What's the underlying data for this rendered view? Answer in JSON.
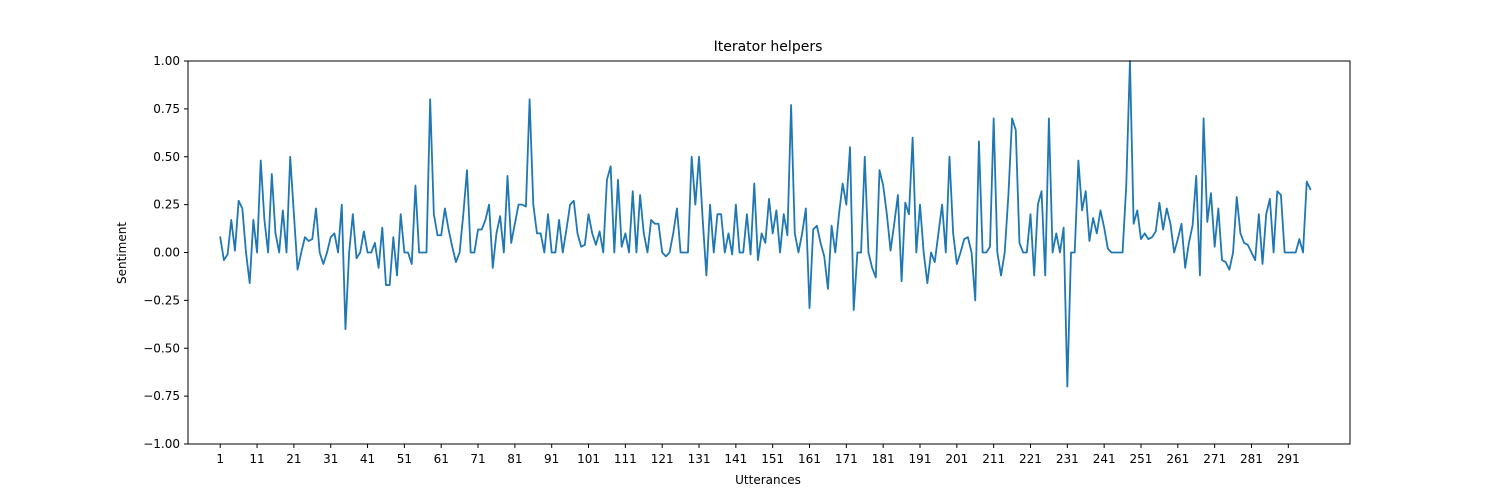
{
  "chart_data": {
    "type": "line",
    "title": "Iterator helpers",
    "xlabel": "Utterances",
    "ylabel": "Sentiment",
    "xlim": [
      -7.75,
      307.75
    ],
    "ylim": [
      -1.0,
      1.0
    ],
    "grid": false,
    "legend": "none",
    "line_color": "#1f77b4",
    "x_ticks": [
      1,
      11,
      21,
      31,
      41,
      51,
      61,
      71,
      81,
      91,
      101,
      111,
      121,
      131,
      141,
      151,
      161,
      171,
      181,
      191,
      201,
      211,
      221,
      231,
      241,
      251,
      261,
      271,
      281,
      291
    ],
    "y_ticks": [
      -1.0,
      -0.75,
      -0.5,
      -0.25,
      0.0,
      0.25,
      0.5,
      0.75,
      1.0
    ],
    "y_tick_labels": [
      "−1.00",
      "−0.75",
      "−0.50",
      "−0.25",
      "0.00",
      "0.25",
      "0.50",
      "0.75",
      "1.00"
    ],
    "series": [
      {
        "x_start": 1,
        "values": [
          0.08,
          -0.04,
          -0.01,
          0.17,
          0.01,
          0.27,
          0.23,
          0.0,
          -0.16,
          0.17,
          0.0,
          0.48,
          0.17,
          0.0,
          0.41,
          0.1,
          0.0,
          0.22,
          0.0,
          0.5,
          0.2,
          -0.09,
          0.0,
          0.08,
          0.06,
          0.07,
          0.23,
          0.0,
          -0.06,
          0.0,
          0.08,
          0.1,
          0.0,
          0.25,
          -0.4,
          0.0,
          0.2,
          -0.03,
          0.0,
          0.11,
          0.0,
          0.0,
          0.05,
          -0.08,
          0.13,
          -0.17,
          -0.17,
          0.08,
          -0.12,
          0.2,
          0.0,
          0.0,
          -0.06,
          0.35,
          0.0,
          0.0,
          0.0,
          0.8,
          0.2,
          0.09,
          0.09,
          0.23,
          0.12,
          0.03,
          -0.05,
          0.0,
          0.2,
          0.43,
          0.0,
          0.0,
          0.12,
          0.12,
          0.17,
          0.25,
          -0.08,
          0.1,
          0.19,
          0.0,
          0.4,
          0.05,
          0.15,
          0.25,
          0.25,
          0.24,
          0.8,
          0.25,
          0.1,
          0.1,
          0.0,
          0.2,
          0.0,
          0.0,
          0.17,
          0.0,
          0.12,
          0.25,
          0.27,
          0.1,
          0.03,
          0.04,
          0.2,
          0.1,
          0.04,
          0.11,
          0.0,
          0.38,
          0.45,
          0.0,
          0.38,
          0.03,
          0.1,
          0.0,
          0.32,
          0.0,
          0.3,
          0.1,
          0.0,
          0.17,
          0.15,
          0.15,
          0.0,
          -0.02,
          0.0,
          0.1,
          0.23,
          0.0,
          0.0,
          0.0,
          0.5,
          0.25,
          0.5,
          0.17,
          -0.12,
          0.25,
          0.0,
          0.2,
          0.2,
          0.0,
          0.1,
          -0.01,
          0.25,
          0.0,
          0.0,
          0.2,
          -0.01,
          0.36,
          -0.04,
          0.1,
          0.05,
          0.28,
          0.1,
          0.22,
          0.0,
          0.2,
          0.09,
          0.77,
          0.1,
          0.0,
          0.1,
          0.23,
          -0.29,
          0.12,
          0.14,
          0.05,
          -0.02,
          -0.19,
          0.14,
          0.0,
          0.2,
          0.36,
          0.25,
          0.55,
          -0.3,
          0.0,
          0.0,
          0.5,
          0.0,
          -0.08,
          -0.13,
          0.43,
          0.35,
          0.2,
          0.01,
          0.15,
          0.3,
          -0.15,
          0.26,
          0.2,
          0.6,
          0.0,
          0.25,
          0.0,
          -0.16,
          0.0,
          -0.05,
          0.1,
          0.25,
          0.0,
          0.5,
          0.1,
          -0.06,
          0.0,
          0.07,
          0.08,
          0.0,
          -0.25,
          0.58,
          0.0,
          0.0,
          0.03,
          0.7,
          0.0,
          -0.12,
          0.0,
          0.3,
          0.7,
          0.64,
          0.05,
          0.0,
          0.0,
          0.2,
          -0.12,
          0.25,
          0.32,
          -0.12,
          0.7,
          0.0,
          0.1,
          0.0,
          0.13,
          -0.7,
          0.0,
          0.0,
          0.48,
          0.22,
          0.32,
          0.06,
          0.18,
          0.1,
          0.22,
          0.13,
          0.02,
          0.0,
          0.0,
          0.0,
          0.0,
          0.35,
          1.0,
          0.15,
          0.22,
          0.07,
          0.1,
          0.07,
          0.08,
          0.11,
          0.26,
          0.12,
          0.23,
          0.15,
          0.0,
          0.07,
          0.15,
          -0.08,
          0.05,
          0.14,
          0.4,
          -0.12,
          0.7,
          0.16,
          0.31,
          0.03,
          0.23,
          -0.04,
          -0.05,
          -0.09,
          0.0,
          0.29,
          0.1,
          0.05,
          0.04,
          0.0,
          -0.04,
          0.2,
          -0.06,
          0.2,
          0.28,
          0.0,
          0.32,
          0.3,
          0.0,
          0.0,
          0.0,
          0.0,
          0.07,
          0.0,
          0.37,
          0.33
        ]
      }
    ]
  }
}
